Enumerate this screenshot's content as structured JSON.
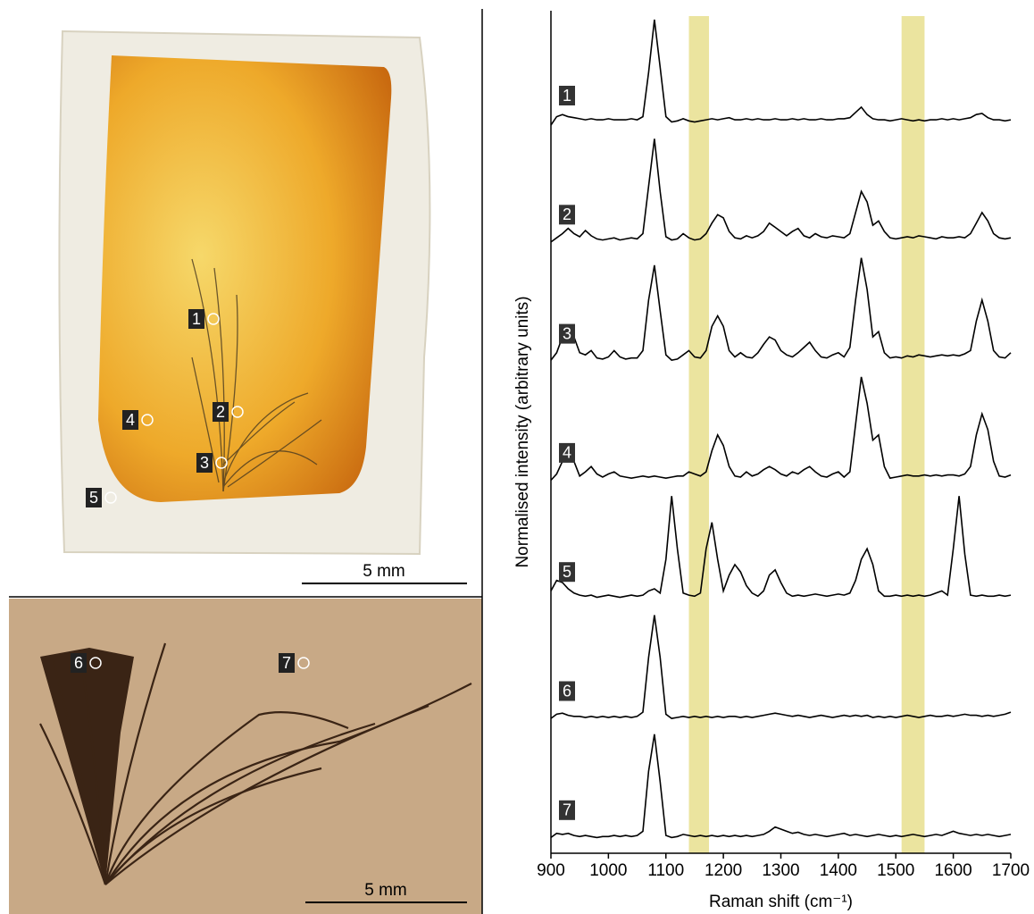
{
  "photos": [
    {
      "markers": [
        "1",
        "2",
        "3",
        "4",
        "5"
      ],
      "scale_bar": "5 mm"
    },
    {
      "markers": [
        "6",
        "7"
      ],
      "scale_bar": "5 mm"
    }
  ],
  "chart_data": {
    "type": "line",
    "xlabel": "Raman shift (cm⁻¹)",
    "ylabel": "Normalised intensity (arbitrary units)",
    "xlim": [
      900,
      1700
    ],
    "xticks": [
      900,
      1000,
      1100,
      1200,
      1300,
      1400,
      1500,
      1600,
      1700
    ],
    "highlight_bands": [
      [
        1140,
        1175
      ],
      [
        1510,
        1550
      ]
    ],
    "band_color": "#e8df8e",
    "x": [
      900,
      910,
      920,
      930,
      940,
      950,
      960,
      970,
      980,
      990,
      1000,
      1010,
      1020,
      1030,
      1040,
      1050,
      1060,
      1070,
      1080,
      1090,
      1100,
      1110,
      1120,
      1130,
      1140,
      1150,
      1160,
      1170,
      1180,
      1190,
      1200,
      1210,
      1220,
      1230,
      1240,
      1250,
      1260,
      1270,
      1280,
      1290,
      1300,
      1310,
      1320,
      1330,
      1340,
      1350,
      1360,
      1370,
      1380,
      1390,
      1400,
      1410,
      1420,
      1430,
      1440,
      1450,
      1460,
      1470,
      1480,
      1490,
      1500,
      1510,
      1520,
      1530,
      1540,
      1550,
      1560,
      1570,
      1580,
      1590,
      1600,
      1610,
      1620,
      1630,
      1640,
      1650,
      1660,
      1670,
      1680,
      1690,
      1700
    ],
    "series": [
      {
        "name": "1",
        "color": "#000000",
        "values": [
          0,
          0.08,
          0.1,
          0.08,
          0.07,
          0.06,
          0.05,
          0.06,
          0.05,
          0.05,
          0.06,
          0.05,
          0.05,
          0.05,
          0.06,
          0.05,
          0.08,
          0.5,
          1.0,
          0.55,
          0.08,
          0.03,
          0.04,
          0.06,
          0.04,
          0.03,
          0.04,
          0.05,
          0.06,
          0.05,
          0.06,
          0.07,
          0.05,
          0.05,
          0.06,
          0.05,
          0.06,
          0.05,
          0.05,
          0.06,
          0.05,
          0.05,
          0.06,
          0.05,
          0.06,
          0.05,
          0.05,
          0.06,
          0.05,
          0.05,
          0.06,
          0.06,
          0.07,
          0.12,
          0.17,
          0.1,
          0.06,
          0.05,
          0.05,
          0.04,
          0.05,
          0.06,
          0.05,
          0.04,
          0.05,
          0.04,
          0.05,
          0.05,
          0.06,
          0.05,
          0.06,
          0.05,
          0.06,
          0.07,
          0.1,
          0.11,
          0.07,
          0.05,
          0.05,
          0.04,
          0.05
        ]
      },
      {
        "name": "2",
        "color": "#000000",
        "values": [
          0.02,
          0.06,
          0.1,
          0.15,
          0.1,
          0.07,
          0.13,
          0.08,
          0.05,
          0.04,
          0.05,
          0.06,
          0.04,
          0.05,
          0.06,
          0.05,
          0.1,
          0.55,
          1.0,
          0.5,
          0.07,
          0.04,
          0.05,
          0.1,
          0.06,
          0.04,
          0.05,
          0.1,
          0.2,
          0.28,
          0.25,
          0.12,
          0.06,
          0.05,
          0.08,
          0.06,
          0.08,
          0.12,
          0.2,
          0.16,
          0.12,
          0.08,
          0.12,
          0.15,
          0.08,
          0.06,
          0.1,
          0.07,
          0.06,
          0.08,
          0.07,
          0.06,
          0.1,
          0.3,
          0.5,
          0.4,
          0.18,
          0.22,
          0.12,
          0.06,
          0.05,
          0.06,
          0.07,
          0.06,
          0.08,
          0.07,
          0.06,
          0.05,
          0.07,
          0.06,
          0.06,
          0.07,
          0.06,
          0.1,
          0.2,
          0.3,
          0.22,
          0.1,
          0.06,
          0.05,
          0.06
        ]
      },
      {
        "name": "3",
        "color": "#000000",
        "values": [
          0.03,
          0.1,
          0.25,
          0.35,
          0.25,
          0.1,
          0.08,
          0.12,
          0.05,
          0.04,
          0.06,
          0.12,
          0.06,
          0.04,
          0.05,
          0.05,
          0.12,
          0.6,
          0.93,
          0.5,
          0.08,
          0.03,
          0.04,
          0.08,
          0.12,
          0.06,
          0.05,
          0.12,
          0.35,
          0.45,
          0.35,
          0.12,
          0.06,
          0.1,
          0.06,
          0.05,
          0.1,
          0.18,
          0.25,
          0.22,
          0.12,
          0.08,
          0.06,
          0.1,
          0.15,
          0.2,
          0.12,
          0.06,
          0.05,
          0.08,
          0.1,
          0.06,
          0.15,
          0.6,
          1.0,
          0.7,
          0.25,
          0.3,
          0.1,
          0.05,
          0.06,
          0.05,
          0.07,
          0.06,
          0.08,
          0.07,
          0.06,
          0.07,
          0.08,
          0.07,
          0.08,
          0.07,
          0.09,
          0.12,
          0.4,
          0.6,
          0.4,
          0.12,
          0.06,
          0.05,
          0.1
        ]
      },
      {
        "name": "4",
        "color": "#000000",
        "values": [
          0.02,
          0.08,
          0.2,
          0.3,
          0.2,
          0.06,
          0.1,
          0.15,
          0.08,
          0.05,
          0.08,
          0.1,
          0.06,
          0.05,
          0.04,
          0.05,
          0.06,
          0.05,
          0.06,
          0.05,
          0.04,
          0.05,
          0.06,
          0.06,
          0.1,
          0.08,
          0.06,
          0.1,
          0.3,
          0.45,
          0.35,
          0.15,
          0.06,
          0.05,
          0.1,
          0.06,
          0.08,
          0.12,
          0.15,
          0.12,
          0.08,
          0.06,
          0.1,
          0.08,
          0.12,
          0.15,
          0.1,
          0.06,
          0.05,
          0.08,
          0.1,
          0.05,
          0.1,
          0.55,
          1.0,
          0.75,
          0.4,
          0.45,
          0.15,
          0.04,
          0.05,
          0.06,
          0.07,
          0.06,
          0.06,
          0.07,
          0.06,
          0.07,
          0.06,
          0.07,
          0.07,
          0.06,
          0.08,
          0.15,
          0.45,
          0.65,
          0.5,
          0.2,
          0.06,
          0.05,
          0.07
        ]
      },
      {
        "name": "5",
        "color": "#000000",
        "values": [
          0.1,
          0.2,
          0.18,
          0.12,
          0.08,
          0.06,
          0.05,
          0.06,
          0.04,
          0.05,
          0.06,
          0.05,
          0.04,
          0.05,
          0.06,
          0.05,
          0.06,
          0.1,
          0.12,
          0.08,
          0.4,
          1.0,
          0.5,
          0.08,
          0.06,
          0.05,
          0.08,
          0.5,
          0.75,
          0.4,
          0.1,
          0.25,
          0.35,
          0.28,
          0.15,
          0.08,
          0.05,
          0.1,
          0.25,
          0.3,
          0.18,
          0.08,
          0.05,
          0.06,
          0.05,
          0.06,
          0.07,
          0.06,
          0.05,
          0.06,
          0.07,
          0.06,
          0.08,
          0.2,
          0.4,
          0.5,
          0.35,
          0.1,
          0.05,
          0.05,
          0.06,
          0.05,
          0.06,
          0.05,
          0.06,
          0.05,
          0.06,
          0.08,
          0.1,
          0.06,
          0.5,
          1.0,
          0.45,
          0.06,
          0.05,
          0.06,
          0.05,
          0.05,
          0.06,
          0.05,
          0.06
        ]
      },
      {
        "name": "6",
        "color": "#000000",
        "values": [
          0.02,
          0.06,
          0.07,
          0.05,
          0.04,
          0.04,
          0.03,
          0.04,
          0.03,
          0.04,
          0.03,
          0.04,
          0.03,
          0.04,
          0.03,
          0.04,
          0.08,
          0.6,
          1.0,
          0.6,
          0.06,
          0.02,
          0.03,
          0.04,
          0.03,
          0.04,
          0.03,
          0.04,
          0.03,
          0.04,
          0.03,
          0.04,
          0.04,
          0.03,
          0.04,
          0.03,
          0.04,
          0.05,
          0.06,
          0.07,
          0.06,
          0.05,
          0.04,
          0.05,
          0.04,
          0.03,
          0.04,
          0.05,
          0.04,
          0.03,
          0.04,
          0.05,
          0.04,
          0.05,
          0.04,
          0.05,
          0.03,
          0.04,
          0.03,
          0.04,
          0.03,
          0.04,
          0.05,
          0.04,
          0.03,
          0.04,
          0.05,
          0.04,
          0.04,
          0.05,
          0.04,
          0.05,
          0.06,
          0.05,
          0.05,
          0.04,
          0.05,
          0.04,
          0.05,
          0.06,
          0.08
        ]
      },
      {
        "name": "7",
        "color": "#000000",
        "values": [
          0.02,
          0.06,
          0.05,
          0.06,
          0.04,
          0.03,
          0.04,
          0.03,
          0.02,
          0.03,
          0.03,
          0.04,
          0.03,
          0.04,
          0.03,
          0.04,
          0.08,
          0.65,
          1.0,
          0.55,
          0.04,
          0.02,
          0.03,
          0.05,
          0.04,
          0.03,
          0.04,
          0.03,
          0.04,
          0.03,
          0.04,
          0.03,
          0.04,
          0.03,
          0.04,
          0.03,
          0.04,
          0.05,
          0.08,
          0.12,
          0.1,
          0.08,
          0.06,
          0.07,
          0.05,
          0.04,
          0.05,
          0.04,
          0.03,
          0.04,
          0.05,
          0.06,
          0.04,
          0.05,
          0.04,
          0.03,
          0.04,
          0.05,
          0.04,
          0.03,
          0.04,
          0.03,
          0.04,
          0.05,
          0.04,
          0.03,
          0.04,
          0.05,
          0.04,
          0.06,
          0.08,
          0.06,
          0.05,
          0.04,
          0.05,
          0.04,
          0.05,
          0.04,
          0.03,
          0.04,
          0.05
        ]
      }
    ]
  }
}
